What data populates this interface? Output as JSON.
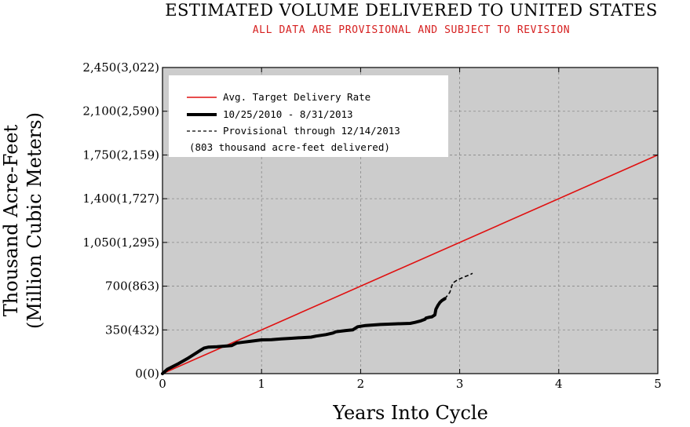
{
  "chart_data": {
    "type": "line",
    "title": "ESTIMATED VOLUME DELIVERED TO UNITED STATES",
    "subtitle": "ALL DATA ARE PROVISIONAL AND SUBJECT TO REVISION",
    "xlabel": "Years Into Cycle",
    "ylabel_line1": "Thousand Acre-Feet",
    "ylabel_line2": "(Million Cubic Meters)",
    "xlim": [
      0,
      5
    ],
    "ylim": [
      0,
      2450
    ],
    "grid": true,
    "x_ticks": [
      {
        "value": 0,
        "label": "0"
      },
      {
        "value": 1,
        "label": "1"
      },
      {
        "value": 2,
        "label": "2"
      },
      {
        "value": 3,
        "label": "3"
      },
      {
        "value": 4,
        "label": "4"
      },
      {
        "value": 5,
        "label": "5"
      }
    ],
    "y_ticks": [
      {
        "value": 0,
        "label": "0(0)"
      },
      {
        "value": 350,
        "label": "350(432)"
      },
      {
        "value": 700,
        "label": "700(863)"
      },
      {
        "value": 1050,
        "label": "1,050(1,295)"
      },
      {
        "value": 1400,
        "label": "1,400(1,727)"
      },
      {
        "value": 1750,
        "label": "1,750(2,159)"
      },
      {
        "value": 2100,
        "label": "2,100(2,590)"
      },
      {
        "value": 2450,
        "label": "2,450(3,022)"
      }
    ],
    "legend": {
      "position": "top-left",
      "entries": [
        "Avg. Target Delivery Rate",
        "10/25/2010 - 8/31/2013",
        "Provisional through 12/14/2013",
        "(803 thousand acre-feet delivered)"
      ]
    },
    "colors": {
      "plot_background": "#cccccc",
      "grid": "#888888",
      "target_line": "#e01010",
      "delivered_line": "#000000"
    },
    "series": [
      {
        "name": "Avg. Target Delivery Rate",
        "style": "solid-red",
        "x": [
          0,
          5
        ],
        "y": [
          0,
          1750
        ]
      },
      {
        "name": "10/25/2010 - 8/31/2013",
        "style": "thick-black",
        "x": [
          0,
          0.05,
          0.15,
          0.25,
          0.35,
          0.42,
          0.46,
          0.55,
          0.7,
          0.75,
          0.8,
          0.9,
          1.0,
          1.1,
          1.2,
          1.3,
          1.4,
          1.5,
          1.55,
          1.65,
          1.72,
          1.75,
          1.85,
          1.92,
          1.97,
          2.05,
          2.2,
          2.35,
          2.5,
          2.55,
          2.6,
          2.65,
          2.66,
          2.7,
          2.72,
          2.75,
          2.76,
          2.78,
          2.8,
          2.82,
          2.85
        ],
        "y": [
          0,
          35,
          75,
          120,
          170,
          205,
          212,
          215,
          225,
          245,
          250,
          260,
          270,
          272,
          278,
          283,
          288,
          292,
          300,
          312,
          325,
          335,
          345,
          350,
          375,
          385,
          393,
          398,
          402,
          410,
          420,
          435,
          445,
          452,
          455,
          470,
          515,
          545,
          570,
          585,
          600
        ]
      },
      {
        "name": "Provisional through 12/14/2013",
        "style": "dashed-black",
        "x": [
          2.85,
          2.9,
          2.93,
          2.98,
          3.05,
          3.1,
          3.13
        ],
        "y": [
          600,
          650,
          725,
          752,
          775,
          790,
          803
        ]
      }
    ]
  }
}
